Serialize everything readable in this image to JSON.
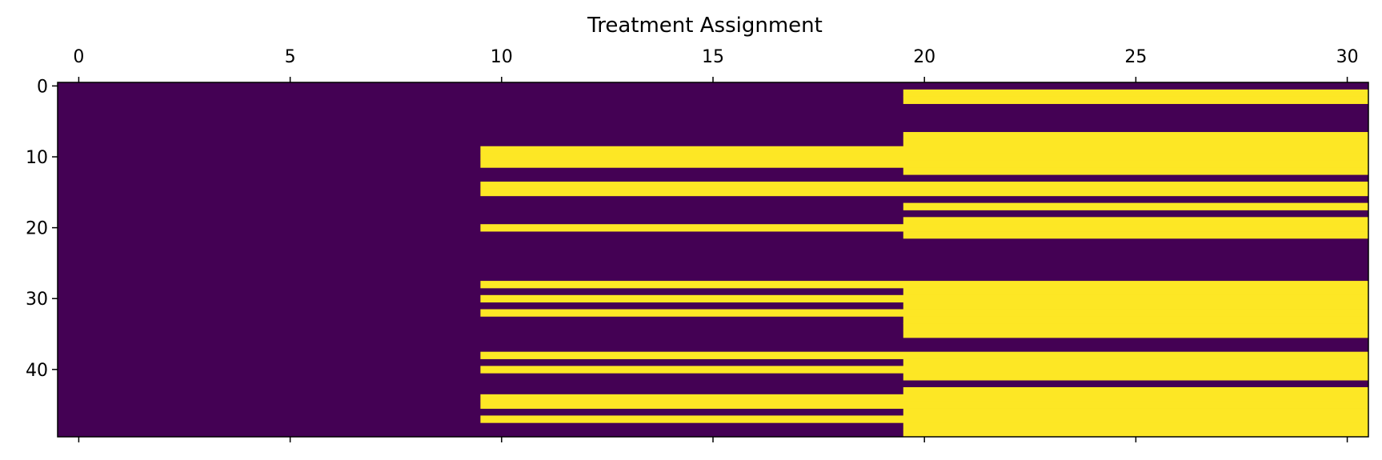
{
  "chart_data": {
    "type": "heatmap",
    "title": "Treatment Assignment",
    "xlabel": "",
    "ylabel": "",
    "x_axis_position": "top",
    "x_ticks": [
      0,
      5,
      10,
      15,
      20,
      25,
      30
    ],
    "y_ticks": [
      0,
      10,
      20,
      30,
      40
    ],
    "xlim": [
      -0.5,
      30.5
    ],
    "ylim": [
      49.5,
      -0.5
    ],
    "n_rows": 50,
    "n_cols": 31,
    "grid": false,
    "colormap": {
      "0": "#440154",
      "1": "#fde725"
    },
    "row_start_columns": [
      null,
      20,
      20,
      null,
      null,
      null,
      null,
      20,
      20,
      10,
      10,
      10,
      20,
      null,
      10,
      10,
      null,
      20,
      null,
      20,
      10,
      20,
      null,
      null,
      null,
      null,
      null,
      null,
      10,
      20,
      10,
      20,
      10,
      20,
      20,
      20,
      null,
      null,
      10,
      20,
      10,
      20,
      null,
      20,
      10,
      10,
      20,
      10,
      20,
      20
    ],
    "cell_value_rule": "1 where column >= row_start_column, otherwise 0 (null = all 0)"
  }
}
